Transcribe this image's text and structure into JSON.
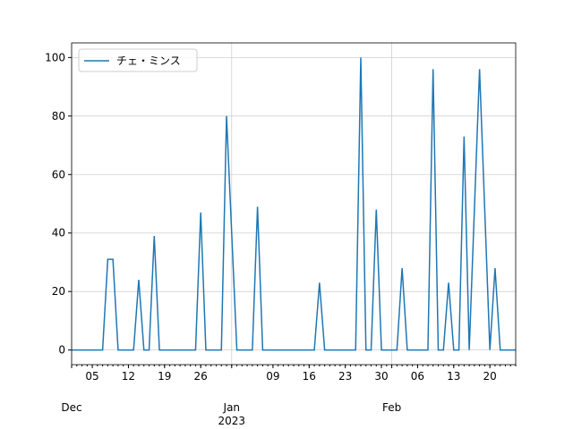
{
  "chart_data": {
    "type": "line",
    "x": [
      "2022-12-01",
      "2022-12-02",
      "2022-12-03",
      "2022-12-04",
      "2022-12-05",
      "2022-12-06",
      "2022-12-07",
      "2022-12-08",
      "2022-12-09",
      "2022-12-10",
      "2022-12-11",
      "2022-12-12",
      "2022-12-13",
      "2022-12-14",
      "2022-12-15",
      "2022-12-16",
      "2022-12-17",
      "2022-12-18",
      "2022-12-19",
      "2022-12-20",
      "2022-12-21",
      "2022-12-22",
      "2022-12-23",
      "2022-12-24",
      "2022-12-25",
      "2022-12-26",
      "2022-12-27",
      "2022-12-28",
      "2022-12-29",
      "2022-12-30",
      "2022-12-31",
      "2023-01-01",
      "2023-01-02",
      "2023-01-03",
      "2023-01-04",
      "2023-01-05",
      "2023-01-06",
      "2023-01-07",
      "2023-01-08",
      "2023-01-09",
      "2023-01-10",
      "2023-01-11",
      "2023-01-12",
      "2023-01-13",
      "2023-01-14",
      "2023-01-15",
      "2023-01-16",
      "2023-01-17",
      "2023-01-18",
      "2023-01-19",
      "2023-01-20",
      "2023-01-21",
      "2023-01-22",
      "2023-01-23",
      "2023-01-24",
      "2023-01-25",
      "2023-01-26",
      "2023-01-27",
      "2023-01-28",
      "2023-01-29",
      "2023-01-30",
      "2023-01-31",
      "2023-02-01",
      "2023-02-02",
      "2023-02-03",
      "2023-02-04",
      "2023-02-05",
      "2023-02-06",
      "2023-02-07",
      "2023-02-08",
      "2023-02-09",
      "2023-02-10",
      "2023-02-11",
      "2023-02-12",
      "2023-02-13",
      "2023-02-14",
      "2023-02-15",
      "2023-02-16",
      "2023-02-17",
      "2023-02-18",
      "2023-02-19",
      "2023-02-20",
      "2023-02-21",
      "2023-02-22",
      "2023-02-23",
      "2023-02-24",
      "2023-02-25"
    ],
    "series": [
      {
        "name": "チェ・ミンス",
        "color": "#1f77b4",
        "values": [
          0,
          0,
          0,
          0,
          0,
          0,
          0,
          31,
          31,
          0,
          0,
          0,
          0,
          24,
          0,
          0,
          39,
          0,
          0,
          0,
          0,
          0,
          0,
          0,
          0,
          47,
          0,
          0,
          0,
          0,
          80,
          40,
          0,
          0,
          0,
          0,
          49,
          0,
          0,
          0,
          0,
          0,
          0,
          0,
          0,
          0,
          0,
          0,
          23,
          0,
          0,
          0,
          0,
          0,
          0,
          0,
          100,
          0,
          0,
          48,
          0,
          0,
          0,
          0,
          28,
          0,
          0,
          0,
          0,
          0,
          96,
          0,
          0,
          23,
          0,
          0,
          73,
          0,
          48,
          96,
          48,
          0,
          28,
          0,
          0,
          0,
          0
        ]
      }
    ],
    "xlim": [
      "2022-12-01",
      "2023-02-25"
    ],
    "xticks_minor": [
      {
        "value": "2022-12-05",
        "label": "05"
      },
      {
        "value": "2022-12-12",
        "label": "12"
      },
      {
        "value": "2022-12-19",
        "label": "19"
      },
      {
        "value": "2022-12-26",
        "label": "26"
      },
      {
        "value": "2023-01-09",
        "label": "09"
      },
      {
        "value": "2023-01-16",
        "label": "16"
      },
      {
        "value": "2023-01-23",
        "label": "23"
      },
      {
        "value": "2023-01-30",
        "label": "30"
      },
      {
        "value": "2023-02-06",
        "label": "06"
      },
      {
        "value": "2023-02-13",
        "label": "13"
      },
      {
        "value": "2023-02-20",
        "label": "20"
      }
    ],
    "xticks": [
      {
        "value": "2022-12-01",
        "label": "Dec"
      },
      {
        "value": "2023-01-01",
        "label": "Jan",
        "sublabel": "2023"
      },
      {
        "value": "2023-02-01",
        "label": "Feb"
      }
    ],
    "ylim": [
      -5,
      105
    ],
    "yticks": [
      0,
      20,
      40,
      60,
      80,
      100
    ],
    "grid": true,
    "legend": "upper left"
  }
}
